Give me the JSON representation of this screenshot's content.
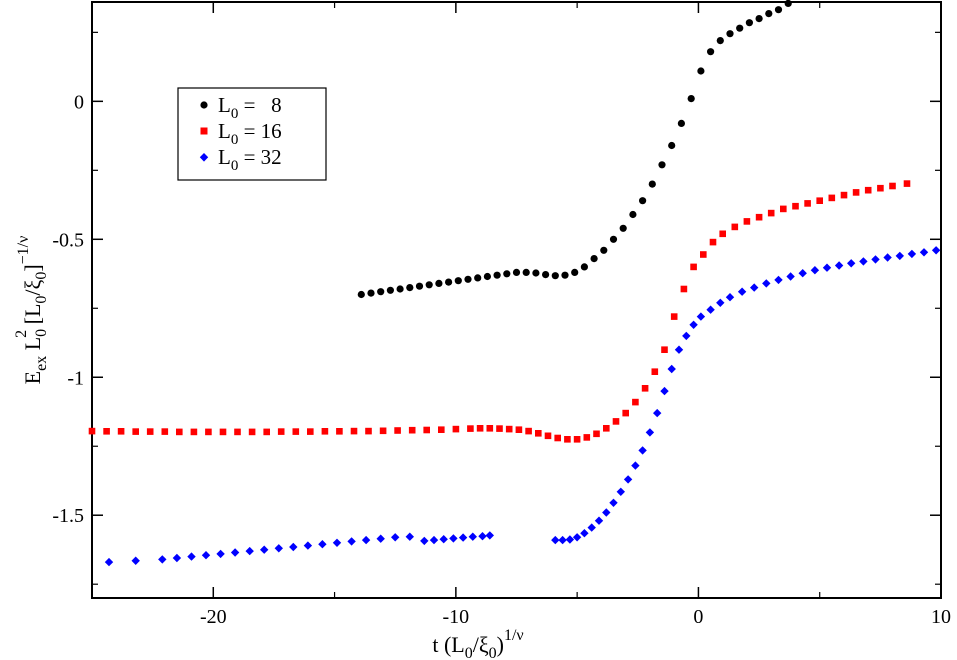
{
  "chart_data": {
    "type": "scatter",
    "title": "",
    "xlabel": {
      "base": "t (L",
      "sub0": "0",
      "mid": "/ξ",
      "sub1": "0",
      "close": ")",
      "sup": "1/ν"
    },
    "ylabel": {
      "base": "E",
      "sub_ex": "ex",
      "l": " L",
      "sub0": "0",
      "sup2": "2",
      "bracket": "  [L",
      "sub1": "0",
      "mid": "/ξ",
      "sub2": "0",
      "close": "]",
      "sup": "−1/ν"
    },
    "xlim": [
      -25,
      10
    ],
    "ylim": [
      -1.8,
      0.36
    ],
    "xticks": [
      -20,
      -10,
      0,
      10
    ],
    "xtick_labels": [
      "-20",
      "-10",
      "0",
      "10"
    ],
    "yticks": [
      0,
      -0.5,
      -1,
      -1.5
    ],
    "ytick_labels": [
      "0",
      "-0.5",
      "-1",
      "-1.5"
    ],
    "grid": false,
    "legend_position": "top-left",
    "series": [
      {
        "name": "L0 = 8",
        "legend": {
          "prefix": "L",
          "sub": "0",
          "suffix": " =   8"
        },
        "color": "#000000",
        "marker": "circle",
        "x": [
          -13.9,
          -13.5,
          -13.1,
          -12.7,
          -12.3,
          -11.9,
          -11.5,
          -11.1,
          -10.7,
          -10.3,
          -9.9,
          -9.5,
          -9.1,
          -8.7,
          -8.3,
          -7.9,
          -7.5,
          -7.1,
          -6.7,
          -6.3,
          -5.9,
          -5.5,
          -5.1,
          -4.7,
          -4.3,
          -3.9,
          -3.5,
          -3.1,
          -2.7,
          -2.3,
          -1.9,
          -1.5,
          -1.1,
          -0.7,
          -0.3,
          0.1,
          0.5,
          0.9,
          1.3,
          1.7,
          2.1,
          2.5,
          2.9,
          3.3,
          3.7
        ],
        "y": [
          -0.7,
          -0.695,
          -0.69,
          -0.685,
          -0.68,
          -0.675,
          -0.67,
          -0.665,
          -0.66,
          -0.655,
          -0.65,
          -0.645,
          -0.64,
          -0.635,
          -0.63,
          -0.625,
          -0.62,
          -0.62,
          -0.622,
          -0.628,
          -0.632,
          -0.63,
          -0.62,
          -0.6,
          -0.57,
          -0.54,
          -0.5,
          -0.46,
          -0.41,
          -0.36,
          -0.3,
          -0.23,
          -0.16,
          -0.08,
          0.01,
          0.11,
          0.18,
          0.22,
          0.245,
          0.265,
          0.285,
          0.3,
          0.318,
          0.332,
          0.355
        ]
      },
      {
        "name": "L0 = 16",
        "legend": {
          "prefix": "L",
          "sub": "0",
          "suffix": " = 16"
        },
        "color": "#ff0000",
        "marker": "square",
        "x": [
          -25,
          -24.4,
          -23.8,
          -23.2,
          -22.6,
          -22,
          -21.4,
          -20.8,
          -20.2,
          -19.6,
          -19,
          -18.4,
          -17.8,
          -17.2,
          -16.6,
          -16,
          -15.4,
          -14.8,
          -14.2,
          -13.6,
          -13,
          -12.4,
          -11.8,
          -11.2,
          -10.6,
          -10,
          -9.4,
          -9,
          -8.6,
          -8.2,
          -7.8,
          -7.4,
          -7,
          -6.6,
          -6.2,
          -5.8,
          -5.4,
          -5,
          -4.6,
          -4.2,
          -3.8,
          -3.4,
          -3,
          -2.6,
          -2.2,
          -1.8,
          -1.4,
          -1,
          -0.6,
          -0.2,
          0.2,
          0.6,
          1,
          1.5,
          2,
          2.5,
          3,
          3.5,
          4,
          4.5,
          5,
          5.5,
          6,
          6.5,
          7,
          7.5,
          8,
          8.6
        ],
        "y": [
          -1.195,
          -1.196,
          -1.196,
          -1.197,
          -1.197,
          -1.197,
          -1.198,
          -1.198,
          -1.198,
          -1.198,
          -1.198,
          -1.198,
          -1.198,
          -1.197,
          -1.197,
          -1.197,
          -1.196,
          -1.196,
          -1.195,
          -1.195,
          -1.194,
          -1.193,
          -1.192,
          -1.191,
          -1.19,
          -1.188,
          -1.186,
          -1.185,
          -1.185,
          -1.186,
          -1.188,
          -1.19,
          -1.195,
          -1.203,
          -1.212,
          -1.22,
          -1.225,
          -1.225,
          -1.218,
          -1.205,
          -1.185,
          -1.16,
          -1.13,
          -1.09,
          -1.04,
          -0.98,
          -0.9,
          -0.78,
          -0.68,
          -0.6,
          -0.555,
          -0.51,
          -0.48,
          -0.455,
          -0.435,
          -0.42,
          -0.405,
          -0.39,
          -0.38,
          -0.37,
          -0.36,
          -0.35,
          -0.34,
          -0.33,
          -0.322,
          -0.315,
          -0.307,
          -0.298
        ]
      },
      {
        "name": "L0 = 32",
        "legend": {
          "prefix": "L",
          "sub": "0",
          "suffix": " = 32"
        },
        "color": "#0000ff",
        "marker": "diamond",
        "x": [
          -24.3,
          -23.2,
          -22.1,
          -21.5,
          -20.9,
          -20.3,
          -19.7,
          -19.1,
          -18.5,
          -17.9,
          -17.3,
          -16.7,
          -16.1,
          -15.5,
          -14.9,
          -14.3,
          -13.7,
          -13.1,
          -12.5,
          -11.9,
          -11.3,
          -10.9,
          -10.5,
          -10.1,
          -9.7,
          -9.3,
          -8.9,
          -8.6,
          -5.9,
          -5.6,
          -5.3,
          -5.0,
          -4.7,
          -4.4,
          -4.1,
          -3.8,
          -3.5,
          -3.2,
          -2.9,
          -2.6,
          -2.3,
          -2.0,
          -1.7,
          -1.4,
          -1.1,
          -0.8,
          -0.5,
          -0.2,
          0.1,
          0.5,
          0.9,
          1.3,
          1.8,
          2.3,
          2.8,
          3.3,
          3.8,
          4.3,
          4.8,
          5.3,
          5.8,
          6.3,
          6.8,
          7.3,
          7.8,
          8.3,
          8.8,
          9.3,
          9.8
        ],
        "y": [
          -1.67,
          -1.665,
          -1.66,
          -1.655,
          -1.65,
          -1.645,
          -1.64,
          -1.635,
          -1.63,
          -1.625,
          -1.62,
          -1.615,
          -1.61,
          -1.605,
          -1.6,
          -1.595,
          -1.59,
          -1.585,
          -1.58,
          -1.578,
          -1.593,
          -1.59,
          -1.587,
          -1.584,
          -1.581,
          -1.578,
          -1.576,
          -1.573,
          -1.59,
          -1.59,
          -1.588,
          -1.58,
          -1.565,
          -1.545,
          -1.52,
          -1.49,
          -1.455,
          -1.415,
          -1.37,
          -1.32,
          -1.265,
          -1.2,
          -1.13,
          -1.05,
          -0.97,
          -0.9,
          -0.85,
          -0.81,
          -0.78,
          -0.755,
          -0.73,
          -0.71,
          -0.69,
          -0.675,
          -0.66,
          -0.647,
          -0.635,
          -0.623,
          -0.612,
          -0.603,
          -0.595,
          -0.587,
          -0.58,
          -0.573,
          -0.566,
          -0.56,
          -0.553,
          -0.547,
          -0.54
        ]
      }
    ]
  }
}
